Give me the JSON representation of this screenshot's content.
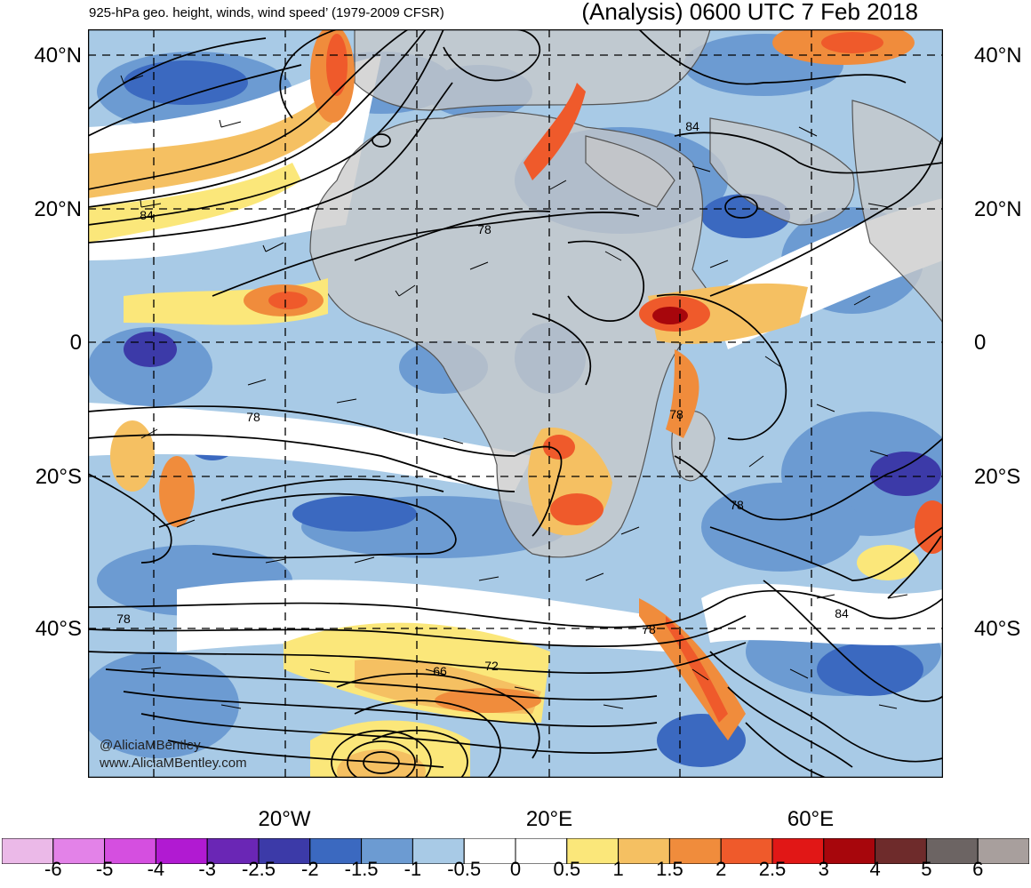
{
  "header": {
    "title_left": "925-hPa geo. height, winds, wind speed’ (1979-2009 CFSR)",
    "title_right": "(Analysis) 0600 UTC 7 Feb 2018"
  },
  "axes": {
    "lat_labels": [
      "40°N",
      "20°N",
      "0",
      "20°S",
      "40°S"
    ],
    "lon_labels": [
      "20°W",
      "20°E",
      "60°E"
    ]
  },
  "map": {
    "contour_labels": [
      "84",
      "78",
      "84",
      "78",
      "78",
      "78",
      "78",
      "84",
      "78",
      "66",
      "72"
    ],
    "contour_color": "#000000",
    "land_color": "#c8c8c8",
    "grid_line": "dashed"
  },
  "credits": {
    "twitter": "@AliciaMBentley",
    "website": "www.AliciaMBentley.com"
  },
  "colorbar": {
    "labels": [
      "-6",
      "-5",
      "-4",
      "-3",
      "-2.5",
      "-2",
      "-1.5",
      "-1",
      "-0.5",
      "0",
      "0.5",
      "1",
      "1.5",
      "2",
      "2.5",
      "3",
      "4",
      "5",
      "6"
    ],
    "colors": [
      "#ebb9e8",
      "#e382e8",
      "#d54fe0",
      "#b11ad2",
      "#6a26b5",
      "#3c3aa8",
      "#3b69c0",
      "#6c9bd2",
      "#a8cae6",
      "#ffffff",
      "#ffffff",
      "#fbe77a",
      "#f5c062",
      "#f08c3c",
      "#ef5a2b",
      "#e11716",
      "#a7060c",
      "#6e2b2b",
      "#6c6463",
      "#a89f9d"
    ]
  }
}
